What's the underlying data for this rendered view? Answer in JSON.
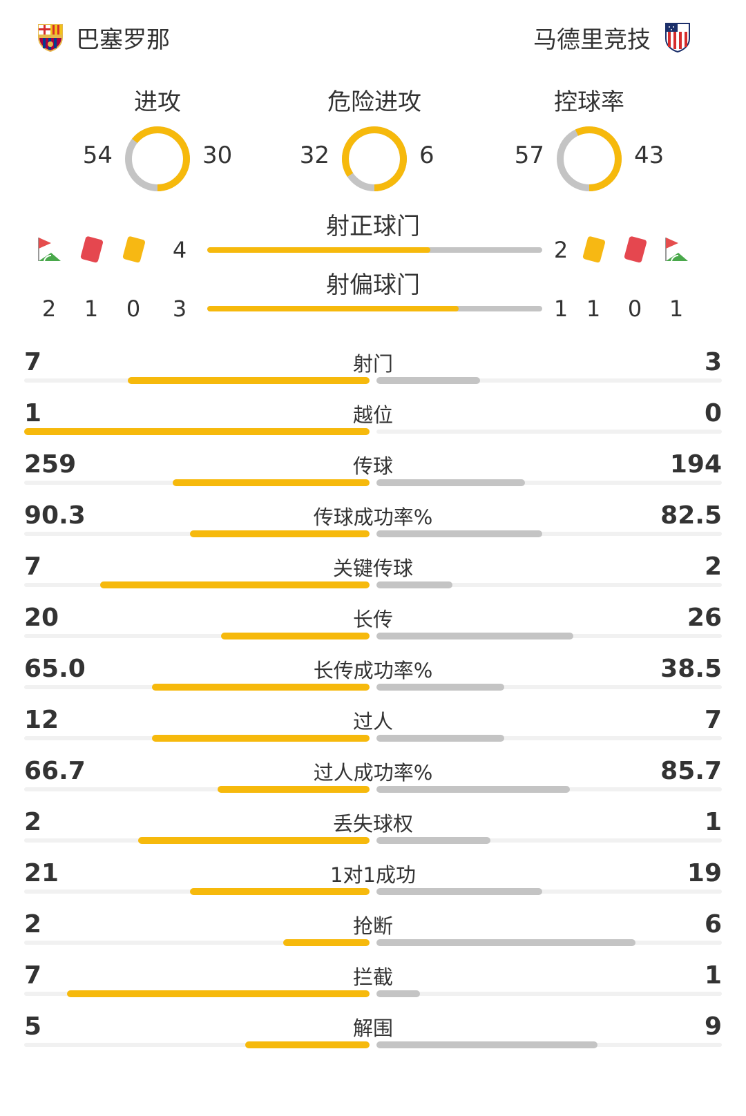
{
  "header": {
    "home_team": "巴塞罗那",
    "away_team": "马德里竞技",
    "home_logo_icon": "barcelona-crest-icon",
    "away_logo_icon": "atletico-crest-icon"
  },
  "donuts": [
    {
      "label": "进攻",
      "home": 54,
      "away": 30
    },
    {
      "label": "危险进攻",
      "home": 32,
      "away": 6
    },
    {
      "label": "控球率",
      "home": 57,
      "away": 43
    }
  ],
  "shots_on": {
    "label": "射正球门",
    "home": 4,
    "away": 2
  },
  "shots_off": {
    "label": "射偏球门",
    "home": 3,
    "away": 1
  },
  "misc": {
    "icons": [
      "corner-flag-icon",
      "red-card-icon",
      "yellow-card-icon"
    ],
    "home": {
      "corners": 2,
      "red": 1,
      "yellow": 0
    },
    "away": {
      "yellow": 1,
      "red": 0,
      "corners": 1
    }
  },
  "stats": [
    {
      "label": "射门",
      "home": "7",
      "away": "3",
      "home_fill": 0.7,
      "away_fill": 0.3
    },
    {
      "label": "越位",
      "home": "1",
      "away": "0",
      "home_fill": 1.0,
      "away_fill": 0.0
    },
    {
      "label": "传球",
      "home": "259",
      "away": "194",
      "home_fill": 0.57,
      "away_fill": 0.43
    },
    {
      "label": "传球成功率%",
      "home": "90.3",
      "away": "82.5",
      "home_fill": 0.52,
      "away_fill": 0.48
    },
    {
      "label": "关键传球",
      "home": "7",
      "away": "2",
      "home_fill": 0.78,
      "away_fill": 0.22
    },
    {
      "label": "长传",
      "home": "20",
      "away": "26",
      "home_fill": 0.43,
      "away_fill": 0.57
    },
    {
      "label": "长传成功率%",
      "home": "65.0",
      "away": "38.5",
      "home_fill": 0.63,
      "away_fill": 0.37
    },
    {
      "label": "过人",
      "home": "12",
      "away": "7",
      "home_fill": 0.63,
      "away_fill": 0.37
    },
    {
      "label": "过人成功率%",
      "home": "66.7",
      "away": "85.7",
      "home_fill": 0.44,
      "away_fill": 0.56
    },
    {
      "label": "丢失球权",
      "home": "2",
      "away": "1",
      "home_fill": 0.67,
      "away_fill": 0.33
    },
    {
      "label": "1对1成功",
      "home": "21",
      "away": "19",
      "home_fill": 0.52,
      "away_fill": 0.48
    },
    {
      "label": "抢断",
      "home": "2",
      "away": "6",
      "home_fill": 0.25,
      "away_fill": 0.75
    },
    {
      "label": "拦截",
      "home": "7",
      "away": "1",
      "home_fill": 0.875,
      "away_fill": 0.125
    },
    {
      "label": "解围",
      "home": "5",
      "away": "9",
      "home_fill": 0.36,
      "away_fill": 0.64
    }
  ],
  "colors": {
    "home": "#f6b90c",
    "away": "#c4c4c4",
    "red_card": "#e5474f",
    "yellow_card": "#f7b813",
    "flag_red": "#e54d4d",
    "flag_green": "#49a84b"
  }
}
